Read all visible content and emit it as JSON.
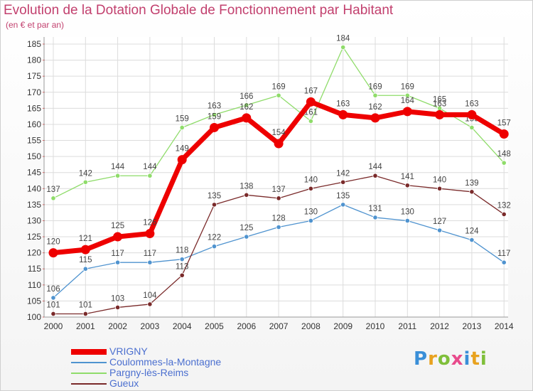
{
  "title": "Evolution de la Dotation Globale de Fonctionnement par Habitant",
  "subtitle": "(en € et par an)",
  "logo": {
    "letters": [
      "P",
      "r",
      "o",
      "x",
      "i",
      "t",
      "i"
    ],
    "colors": [
      "#3a8fd8",
      "#e8a21f",
      "#7fbf3a",
      "#e84b8c",
      "#3a8fd8",
      "#e8a21f",
      "#7fbf3a"
    ]
  },
  "chart_data": {
    "type": "line",
    "title": "Evolution de la Dotation Globale de Fonctionnement par Habitant",
    "subtitle": "(en € et par an)",
    "x": [
      "2000",
      "2001",
      "2002",
      "2003",
      "2004",
      "2005",
      "2006",
      "2007",
      "2008",
      "2009",
      "2010",
      "2011",
      "2012",
      "2013",
      "2014"
    ],
    "ylim": [
      100,
      185
    ],
    "yticks": [
      100,
      105,
      110,
      115,
      120,
      125,
      130,
      135,
      140,
      145,
      150,
      155,
      160,
      165,
      170,
      175,
      180,
      185
    ],
    "grid": true,
    "legend_position": "bottom-left",
    "series": [
      {
        "name": "Pargny-lès-Reims",
        "color": "#8fdc6a",
        "values": [
          137,
          142,
          144,
          144,
          159,
          163,
          166,
          169,
          161,
          184,
          169,
          169,
          165,
          159,
          148
        ]
      },
      {
        "name": "Coulommes-la-Montagne",
        "color": "#4f93cf",
        "values": [
          106,
          115,
          117,
          117,
          118,
          122,
          125,
          128,
          130,
          135,
          131,
          130,
          127,
          124,
          117
        ]
      },
      {
        "name": "Gueux",
        "color": "#7a2a2a",
        "values": [
          101,
          101,
          103,
          104,
          113,
          135,
          138,
          137,
          140,
          142,
          144,
          141,
          140,
          139,
          132
        ]
      },
      {
        "name": "VRIGNY",
        "color": "#ee0000",
        "values": [
          120,
          121,
          125,
          126,
          149,
          159,
          162,
          154,
          167,
          163,
          162,
          164,
          163,
          163,
          157
        ]
      }
    ],
    "legend_order": [
      "VRIGNY",
      "Coulommes-la-Montagne",
      "Pargny-lès-Reims",
      "Gueux"
    ]
  }
}
